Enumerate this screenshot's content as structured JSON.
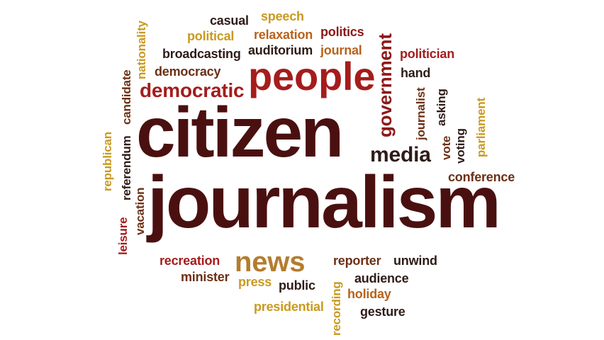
{
  "words": {
    "casual": "casual",
    "speech": "speech",
    "political": "political",
    "relaxation": "relaxation",
    "politics": "politics",
    "nationality": "nationality",
    "broadcasting": "broadcasting",
    "auditorium": "auditorium",
    "journal": "journal",
    "politician": "politician",
    "government": "government",
    "democracy": "democracy",
    "people": "people",
    "hand": "hand",
    "candidate": "candidate",
    "democratic": "democratic",
    "journalist": "journalist",
    "asking": "asking",
    "parliament": "parliament",
    "republican": "republican",
    "referendum": "referendum",
    "citizen": "citizen",
    "media": "media",
    "vote": "vote",
    "voting": "voting",
    "conference": "conference",
    "vacation": "vacation",
    "leisure": "leisure",
    "journalism": "journalism",
    "recreation": "recreation",
    "news": "news",
    "reporter": "reporter",
    "unwind": "unwind",
    "minister": "minister",
    "audience": "audience",
    "press": "press",
    "public": "public",
    "recording": "recording",
    "holiday": "holiday",
    "presidential": "presidential",
    "gesture": "gesture"
  },
  "palette": {
    "dark_maroon": "#4a1010",
    "red": "#a51c1c",
    "crimson": "#8e1717",
    "gold": "#c99a20",
    "orange": "#b8621c",
    "near_black": "#2e1c18",
    "brown": "#6b3015",
    "tan": "#b37d2e",
    "background": "#ffffff"
  }
}
